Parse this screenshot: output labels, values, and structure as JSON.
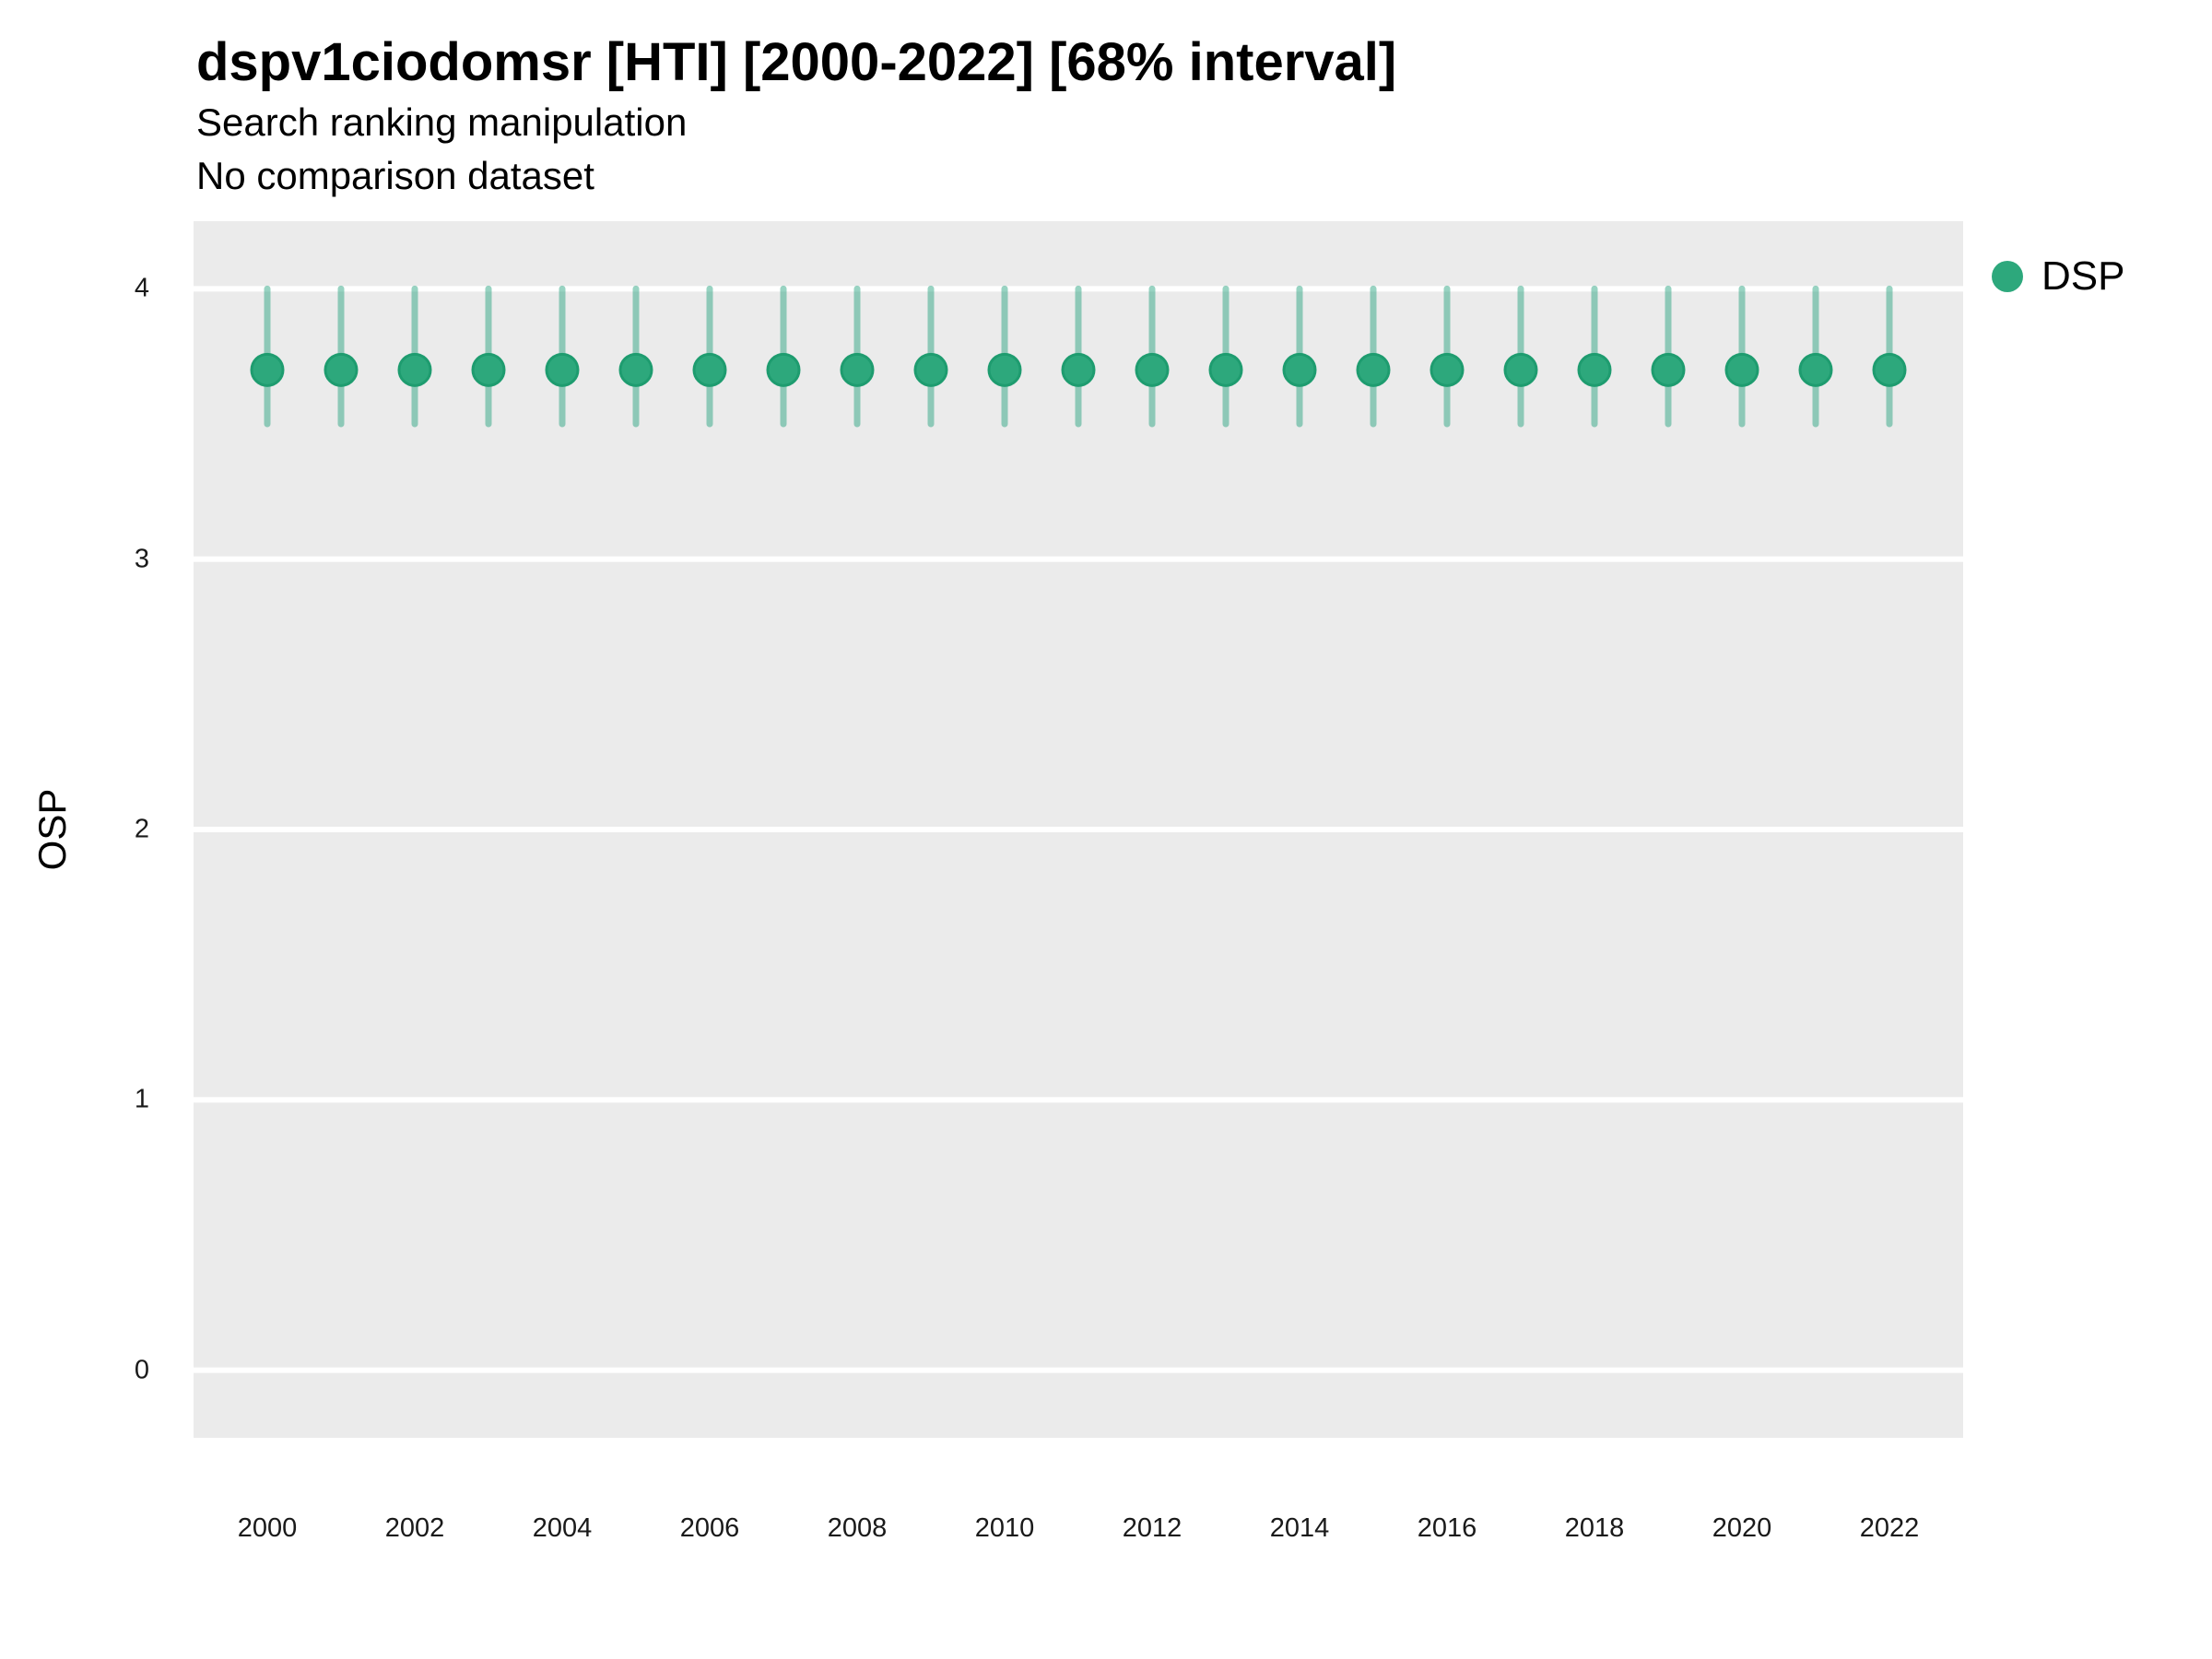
{
  "header": {
    "title": "dspv1ciodomsr [HTI] [2000-2022] [68% interval]",
    "subtitle": "Search ranking manipulation",
    "caption": "No comparison dataset"
  },
  "legend": {
    "items": [
      {
        "label": "DSP",
        "color": "#2DA87C"
      }
    ]
  },
  "chart_data": {
    "type": "pointrange",
    "title": "dspv1ciodomsr [HTI] [2000-2022] [68% interval]",
    "subtitle": "Search ranking manipulation",
    "note": "No comparison dataset",
    "interval": "68%",
    "xlabel": "",
    "ylabel": "OSP",
    "x": [
      2000,
      2001,
      2002,
      2003,
      2004,
      2005,
      2006,
      2007,
      2008,
      2009,
      2010,
      2011,
      2012,
      2013,
      2014,
      2015,
      2016,
      2017,
      2018,
      2019,
      2020,
      2021,
      2022
    ],
    "series": [
      {
        "name": "DSP",
        "values": [
          3.7,
          3.7,
          3.7,
          3.7,
          3.7,
          3.7,
          3.7,
          3.7,
          3.7,
          3.7,
          3.7,
          3.7,
          3.7,
          3.7,
          3.7,
          3.7,
          3.7,
          3.7,
          3.7,
          3.7,
          3.7,
          3.7,
          3.7
        ],
        "lower": [
          3.5,
          3.5,
          3.5,
          3.5,
          3.5,
          3.5,
          3.5,
          3.5,
          3.5,
          3.5,
          3.5,
          3.5,
          3.5,
          3.5,
          3.5,
          3.5,
          3.5,
          3.5,
          3.5,
          3.5,
          3.5,
          3.5,
          3.5
        ],
        "upper": [
          4.0,
          4.0,
          4.0,
          4.0,
          4.0,
          4.0,
          4.0,
          4.0,
          4.0,
          4.0,
          4.0,
          4.0,
          4.0,
          4.0,
          4.0,
          4.0,
          4.0,
          4.0,
          4.0,
          4.0,
          4.0,
          4.0,
          4.0
        ]
      }
    ],
    "xlim": [
      1999,
      2023
    ],
    "ylim": [
      -0.25,
      4.25
    ],
    "xticks": [
      2000,
      2002,
      2004,
      2006,
      2008,
      2010,
      2012,
      2014,
      2016,
      2018,
      2020,
      2022
    ],
    "yticks": [
      0,
      1,
      2,
      3,
      4
    ],
    "grid": "major-horizontal",
    "legend_position": "right",
    "colors": {
      "panel": "#EBEBEB",
      "grid": "#FFFFFF",
      "point": "#2DA87C",
      "point_stroke": "#1E9C6F",
      "interval": "rgba(27,158,119,0.45)",
      "text": "#000000"
    }
  }
}
